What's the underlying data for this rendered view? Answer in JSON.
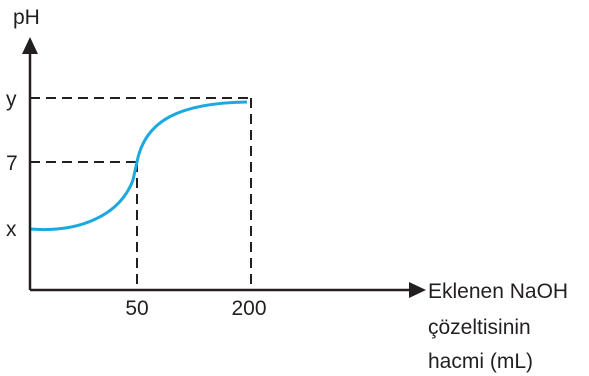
{
  "chart_data": {
    "type": "line",
    "title": "",
    "ylabel": "pH",
    "xlabel_lines": [
      "Eklenen NaOH",
      "çözeltisinin",
      "hacmi (mL)"
    ],
    "x_ticks": [
      {
        "value": 50,
        "label": "50"
      },
      {
        "value": 200,
        "label": "200"
      }
    ],
    "y_ticks": [
      {
        "value": "x",
        "label": "x"
      },
      {
        "value": 7,
        "label": "7"
      },
      {
        "value": "y",
        "label": "y"
      }
    ],
    "series": [
      {
        "curve": "titration",
        "color": "#1ba9e0",
        "points": [
          {
            "x": 0,
            "y": "x"
          },
          {
            "x": 50,
            "y": 7
          },
          {
            "x": 200,
            "y": "y"
          }
        ]
      }
    ],
    "reference_lines": [
      {
        "from": "x:50",
        "to": "y:7",
        "style": "dashed"
      },
      {
        "from": "x:200",
        "to": "y:y",
        "style": "dashed"
      }
    ],
    "axis_color": "#231f20",
    "grid": false,
    "legend": "none"
  }
}
